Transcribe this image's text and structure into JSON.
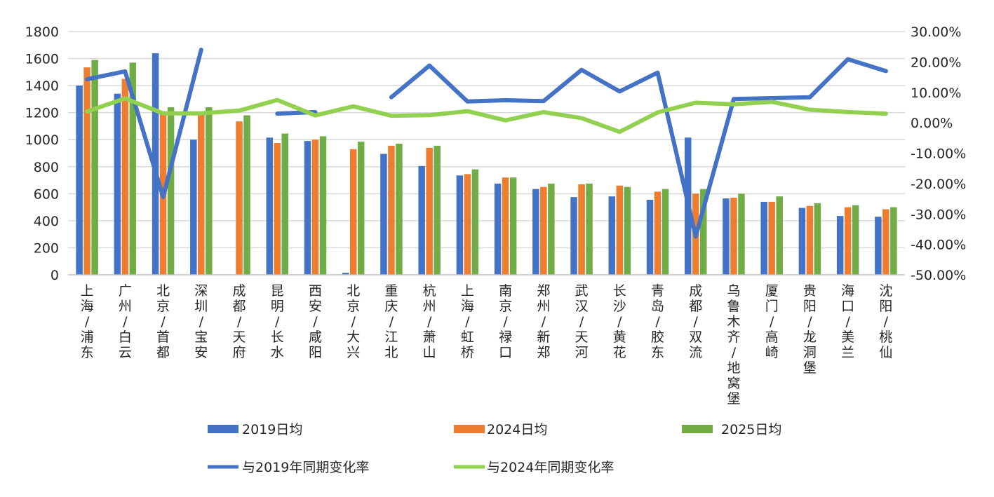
{
  "chart_data": {
    "type": "bar",
    "categories": [
      "上海/浦东",
      "广州/白云",
      "北京/首都",
      "深圳/宝安",
      "成都/天府",
      "昆明/长水",
      "西安/咸阳",
      "北京/大兴",
      "重庆/江北",
      "杭州/萧山",
      "上海/虹桥",
      "南京/禄口",
      "郑州/新郑",
      "武汉/天河",
      "长沙/黄花",
      "青岛/胶东",
      "成都/双流",
      "乌鲁木齐/地窝堡",
      "厦门/高崎",
      "贵阳/龙洞堡",
      "海口/美兰",
      "沈阳/桃仙"
    ],
    "series": [
      {
        "name": "2019日均",
        "kind": "bar",
        "axis": "left",
        "color": "#4472C4",
        "values": [
          1400,
          1340,
          1640,
          1000,
          null,
          1015,
          990,
          15,
          895,
          805,
          735,
          675,
          635,
          575,
          580,
          555,
          1015,
          565,
          540,
          495,
          435,
          430
        ]
      },
      {
        "name": "2024日均",
        "kind": "bar",
        "axis": "left",
        "color": "#ED7D31",
        "values": [
          1535,
          1450,
          1210,
          1195,
          1135,
          975,
          1000,
          930,
          955,
          940,
          745,
          720,
          650,
          670,
          660,
          615,
          600,
          570,
          540,
          510,
          500,
          485
        ]
      },
      {
        "name": "2025日均",
        "kind": "bar",
        "axis": "left",
        "color": "#70AD47",
        "values": [
          1590,
          1570,
          1240,
          1240,
          1180,
          1045,
          1025,
          985,
          970,
          955,
          780,
          720,
          675,
          675,
          650,
          635,
          635,
          600,
          580,
          530,
          515,
          500
        ]
      },
      {
        "name": "与2019年同期变化率",
        "kind": "line",
        "axis": "right",
        "color": "#4472C4",
        "values": [
          14.3,
          16.9,
          -24.4,
          24.0,
          null,
          3.0,
          3.5,
          null,
          8.4,
          18.8,
          7.0,
          7.4,
          7.1,
          17.4,
          10.3,
          16.5,
          -37.4,
          7.8,
          8.1,
          8.4,
          20.9,
          17.0
        ]
      },
      {
        "name": "与2024年同期变化率",
        "kind": "line",
        "axis": "right",
        "color": "#92D050",
        "values": [
          3.7,
          8.0,
          3.1,
          3.1,
          4.0,
          7.5,
          2.4,
          5.4,
          2.3,
          2.5,
          3.8,
          0.8,
          3.5,
          1.5,
          -3.0,
          3.4,
          6.6,
          6.1,
          6.9,
          4.3,
          3.5,
          3.0
        ]
      }
    ],
    "y_left": {
      "min": 0,
      "max": 1800,
      "ticks": [
        "0",
        "200",
        "400",
        "600",
        "800",
        "1000",
        "1200",
        "1400",
        "1600",
        "1800"
      ]
    },
    "y_right": {
      "min": -50,
      "max": 30,
      "ticks": [
        "-50.00%",
        "-40.00%",
        "-30.00%",
        "-20.00%",
        "-10.00%",
        "0.00%",
        "10.00%",
        "20.00%",
        "30.00%"
      ]
    },
    "grid": true,
    "legend_position": "bottom",
    "title": "",
    "xlabel": "",
    "ylabel": ""
  }
}
